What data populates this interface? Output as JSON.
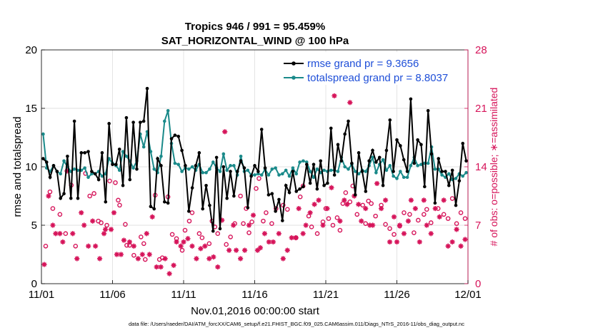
{
  "chart_data": {
    "type": "line",
    "title": "Tropics 946 / 991 = 95.459%",
    "subtitle": "SAT_HORIZONTAL_WIND @ 100 hPa",
    "xlabel": "Nov.01,2016 00:00:00 start",
    "ylabel": "rmse and totalspread",
    "y2label": "# of obs: o=possible; ∗=assimilated",
    "footnote": "data file: /Users/raeder/DAI/ATM_forcXX/CAM6_setup/f.e21.FHIST_BGC.f09_025.CAM6assim.011/Diags_NTrS_2016-11/obs_diag_output.nc",
    "xlim": [
      0,
      30
    ],
    "ylim": [
      0,
      20
    ],
    "y2lim": [
      0,
      28
    ],
    "xticks": [
      0,
      5,
      10,
      15,
      20,
      25,
      30
    ],
    "xtick_labels": [
      "11/01",
      "11/06",
      "11/11",
      "11/16",
      "11/21",
      "11/26",
      "12/01"
    ],
    "yticks": [
      0,
      5,
      10,
      15,
      20
    ],
    "ytick_labels": [
      "0",
      "5",
      "10",
      "15",
      "20"
    ],
    "y2ticks": [
      0,
      7,
      14,
      21,
      28
    ],
    "y2tick_labels": [
      "0",
      "7",
      "14",
      "21",
      "28"
    ],
    "colors": {
      "rmse": "#000000",
      "spread": "#1a8a8a",
      "obs": "#d6145a",
      "legend_text": "#1f4fd8"
    },
    "series": [
      {
        "name": "rmse grand pr = 9.3656",
        "values": [
          10.7,
          10.4,
          9.1,
          10.1,
          9.6,
          7.3,
          7.7,
          10.9,
          7.3,
          13.9,
          7.3,
          11.2,
          11.2,
          11.3,
          9.6,
          9.4,
          8.9,
          11.2,
          7,
          13.7,
          10.2,
          10.2,
          11.5,
          8.4,
          14.2,
          8.9,
          13.8,
          9.8,
          13.8,
          13.9,
          16.7,
          6.6,
          6.4,
          10.7,
          10.1,
          7,
          6.9,
          12.4,
          12.7,
          12.6,
          11.4,
          10.1,
          6.2,
          8.2,
          10.1,
          11.2,
          6.4,
          8.4,
          6.7,
          4.5,
          10.8,
          4.7,
          10,
          7.3,
          9.6,
          7.5,
          9.6,
          10.5,
          9.9,
          6.5,
          9.2,
          10.1,
          9.6,
          13.2,
          9.9,
          7.6,
          7.7,
          6.2,
          7.2,
          5.4,
          8.4,
          7.8,
          9.6,
          7.9,
          8.1,
          8.3,
          10.2,
          8.6,
          10.2,
          8.1,
          10.5,
          8.4,
          8.6,
          13.3,
          9.3,
          11.9,
          10.5,
          12.8,
          13.9,
          10.3,
          7.6,
          11.2,
          9.6,
          7.9,
          10.5,
          11.4,
          10.4,
          10.8,
          8.4,
          11.4,
          14,
          9.6,
          12.3,
          11.8,
          10.6,
          9.6,
          15.8,
          10.3,
          12.3,
          11.9,
          8.3,
          14.8,
          11.1,
          6.9,
          10.7,
          9.6,
          9.6,
          8.4,
          9.7,
          6.7,
          8.8,
          12,
          10.5
        ]
      },
      {
        "name": "totalspread grand pr = 8.8037",
        "values": [
          12.8,
          9.9,
          9.6,
          10.1,
          9.6,
          9.4,
          10.5,
          10,
          9.6,
          9.8,
          9.7,
          9.7,
          9.9,
          9.1,
          9.4,
          9.4,
          9.6,
          9.2,
          9.4,
          10.7,
          10.3,
          10.1,
          9.7,
          11.3,
          10.9,
          10.5,
          9.9,
          10.5,
          12.8,
          11.7,
          13,
          11.3,
          9.8,
          9.5,
          10.9,
          13.9,
          14.8,
          12,
          10.3,
          10.2,
          9.6,
          9.9,
          9.8,
          10,
          9.7,
          10.2,
          9.5,
          9.5,
          9.8,
          10.4,
          9.9,
          9.6,
          11.1,
          9.7,
          10.1,
          10.1,
          9.3,
          10.9,
          9.6,
          9.7,
          9.3,
          9.3,
          9.4,
          9.3,
          9.8,
          9.3,
          9.8,
          9.9,
          9.3,
          9.4,
          9.7,
          9.2,
          9.9,
          9.4,
          10.4,
          10.5,
          10.4,
          9.6,
          9.1,
          9.8,
          9.5,
          9.7,
          9.6,
          9.7,
          9.7,
          9.6,
          10.8,
          10,
          9.8,
          10.2,
          9.6,
          9.4,
          9.7,
          9.6,
          10.1,
          10.8,
          9.5,
          10.2,
          10.6,
          9.7,
          10.1,
          9.2,
          9,
          9.6,
          9.1,
          9.1,
          10.1,
          10.8,
          10.1,
          10.2,
          10.3,
          10.3,
          11.7,
          9.8,
          9.8,
          9.3,
          9.1,
          9.4,
          8.9,
          9,
          9.4,
          9.2,
          9.5
        ]
      }
    ],
    "obs_possible": [
      [
        0.3,
        4.5
      ],
      [
        0.6,
        11
      ],
      [
        0.8,
        9
      ],
      [
        1.3,
        8.3
      ],
      [
        1.7,
        6
      ],
      [
        2.1,
        11.8
      ],
      [
        2.4,
        4.5
      ],
      [
        3.1,
        13.2
      ],
      [
        3.4,
        10.5
      ],
      [
        3.7,
        10.8
      ],
      [
        4,
        7.5
      ],
      [
        4.2,
        7.3
      ],
      [
        4.6,
        7
      ],
      [
        4.8,
        12.3
      ],
      [
        5.2,
        12.1
      ],
      [
        5.4,
        10
      ],
      [
        5.5,
        9.4
      ],
      [
        5.9,
        7.1
      ],
      [
        6,
        4.6
      ],
      [
        6.2,
        4.6
      ],
      [
        6.5,
        3.4
      ],
      [
        7,
        5.6
      ],
      [
        7.2,
        4.8
      ],
      [
        7.3,
        2.9
      ],
      [
        8,
        10.6
      ],
      [
        8.3,
        2.9
      ],
      [
        8.5,
        3.1
      ],
      [
        8.9,
        10.4
      ],
      [
        9.2,
        5.9
      ],
      [
        9.5,
        5.4
      ],
      [
        9.9,
        4
      ],
      [
        10.1,
        6.4
      ],
      [
        10.4,
        7.5
      ],
      [
        10.6,
        8.5
      ],
      [
        11.1,
        6
      ],
      [
        11.3,
        5.5
      ],
      [
        11.8,
        4.8
      ],
      [
        12,
        7.5
      ],
      [
        12.2,
        6.8
      ],
      [
        12.4,
        6
      ],
      [
        13,
        4.7
      ],
      [
        13.3,
        5.6
      ],
      [
        13.6,
        7.2
      ],
      [
        14,
        10.5
      ],
      [
        14.2,
        7.2
      ],
      [
        14.4,
        9
      ],
      [
        14.6,
        6.1
      ],
      [
        14.8,
        7.4
      ],
      [
        15.1,
        11.4
      ],
      [
        15.3,
        12.6
      ],
      [
        15.6,
        7.5
      ],
      [
        15.8,
        8.5
      ],
      [
        16.2,
        7.2
      ],
      [
        16.5,
        9
      ],
      [
        17,
        9.4
      ],
      [
        17.3,
        8.9
      ],
      [
        17.9,
        5.5
      ],
      [
        18.2,
        10.4
      ],
      [
        18.4,
        11.7
      ],
      [
        18.8,
        8.1
      ],
      [
        19,
        6.8
      ],
      [
        19.4,
        6
      ],
      [
        19.8,
        7.4
      ],
      [
        20,
        9
      ],
      [
        20.2,
        7.8
      ],
      [
        20.5,
        7
      ],
      [
        20.8,
        7.9
      ],
      [
        21,
        6.4
      ],
      [
        21.2,
        9.6
      ],
      [
        21.4,
        10.9
      ],
      [
        21.7,
        9.8
      ],
      [
        21.9,
        11.7
      ],
      [
        22.2,
        8.3
      ],
      [
        22.6,
        9.4
      ],
      [
        22.8,
        7.2
      ],
      [
        23,
        9.9
      ],
      [
        23.2,
        9.6
      ],
      [
        23.5,
        8.1
      ],
      [
        23.9,
        9.4
      ],
      [
        24.2,
        7.1
      ],
      [
        24.5,
        6.6
      ],
      [
        24.8,
        5.9
      ],
      [
        25.2,
        6.9
      ],
      [
        25.5,
        8.5
      ],
      [
        25.9,
        8.3
      ],
      [
        26.2,
        6.1
      ],
      [
        26.5,
        7.6
      ],
      [
        26.9,
        8.3
      ],
      [
        27.1,
        8.9
      ],
      [
        27.4,
        7.3
      ],
      [
        27.9,
        9
      ],
      [
        28.3,
        8.3
      ],
      [
        28.6,
        7.8
      ],
      [
        28.9,
        10.2
      ],
      [
        29.2,
        7.2
      ],
      [
        29.5,
        8.5
      ],
      [
        29.8,
        7.8
      ]
    ],
    "obs_assimilated": [
      [
        0.2,
        2.3
      ],
      [
        0.5,
        10.5
      ],
      [
        0.8,
        7
      ],
      [
        1,
        6
      ],
      [
        1.3,
        6
      ],
      [
        1.5,
        5
      ],
      [
        1.8,
        13.5
      ],
      [
        2.2,
        6
      ],
      [
        2.5,
        3
      ],
      [
        2.8,
        8.5
      ],
      [
        3,
        7
      ],
      [
        3.3,
        4.5
      ],
      [
        3.6,
        7.5
      ],
      [
        3.8,
        4.5
      ],
      [
        4.1,
        3
      ],
      [
        4.4,
        6
      ],
      [
        4.5,
        6.5
      ],
      [
        4.9,
        6.5
      ],
      [
        5.1,
        8.5
      ],
      [
        5.3,
        3.5
      ],
      [
        5.6,
        3.5
      ],
      [
        5.8,
        5.2
      ],
      [
        6.2,
        5
      ],
      [
        6.5,
        4.5
      ],
      [
        6.8,
        3
      ],
      [
        7.1,
        3.5
      ],
      [
        7.4,
        6
      ],
      [
        7.6,
        3.5
      ],
      [
        7.8,
        8
      ],
      [
        8.1,
        2
      ],
      [
        8.4,
        2
      ],
      [
        8.7,
        3
      ],
      [
        9,
        1.2
      ],
      [
        9.3,
        2.2
      ],
      [
        9.5,
        5
      ],
      [
        9.8,
        4.5
      ],
      [
        10,
        5
      ],
      [
        10.3,
        5.4
      ],
      [
        10.6,
        4.5
      ],
      [
        10.9,
        3
      ],
      [
        11.2,
        4.2
      ],
      [
        11.5,
        4.5
      ],
      [
        11.8,
        3
      ],
      [
        12.1,
        3.2
      ],
      [
        12.4,
        2
      ],
      [
        12.7,
        7.6
      ],
      [
        12.9,
        18.2
      ],
      [
        13.2,
        4
      ],
      [
        13.5,
        7
      ],
      [
        13.7,
        4
      ],
      [
        14,
        3
      ],
      [
        14.3,
        4
      ],
      [
        14.6,
        7
      ],
      [
        14.9,
        8.2
      ],
      [
        15.2,
        4
      ],
      [
        15.4,
        4.3
      ],
      [
        15.7,
        6
      ],
      [
        16,
        5
      ],
      [
        16.3,
        5
      ],
      [
        16.7,
        6
      ],
      [
        17,
        3
      ],
      [
        17.3,
        4
      ],
      [
        17.6,
        5.5
      ],
      [
        17.9,
        5.5
      ],
      [
        18.1,
        9
      ],
      [
        18.4,
        6
      ],
      [
        18.6,
        7
      ],
      [
        18.9,
        8.5
      ],
      [
        19.2,
        9.5
      ],
      [
        19.5,
        10
      ],
      [
        19.8,
        7
      ],
      [
        20.1,
        9
      ],
      [
        20.4,
        11.5
      ],
      [
        20.6,
        22.5
      ],
      [
        21,
        7.5
      ],
      [
        21.3,
        10
      ],
      [
        21.5,
        9.5
      ],
      [
        21.7,
        21.7
      ],
      [
        22,
        10.5
      ],
      [
        22.3,
        9.5
      ],
      [
        22.5,
        7.5
      ],
      [
        22.8,
        9
      ],
      [
        23.1,
        7
      ],
      [
        23.3,
        7
      ],
      [
        23.6,
        12
      ],
      [
        23.9,
        9
      ],
      [
        24.2,
        10
      ],
      [
        24.5,
        5
      ],
      [
        24.8,
        8
      ],
      [
        25,
        5
      ],
      [
        25.2,
        7
      ],
      [
        25.5,
        6
      ],
      [
        25.8,
        7.5
      ],
      [
        26,
        10
      ],
      [
        26.3,
        9
      ],
      [
        26.6,
        5
      ],
      [
        26.9,
        10
      ],
      [
        27.1,
        7
      ],
      [
        27.4,
        6
      ],
      [
        27.7,
        9
      ],
      [
        28,
        8
      ],
      [
        28.3,
        10
      ],
      [
        28.6,
        4.5
      ],
      [
        28.9,
        5
      ],
      [
        29.2,
        6.5
      ],
      [
        29.5,
        4.5
      ],
      [
        29.8,
        5.3
      ]
    ]
  }
}
